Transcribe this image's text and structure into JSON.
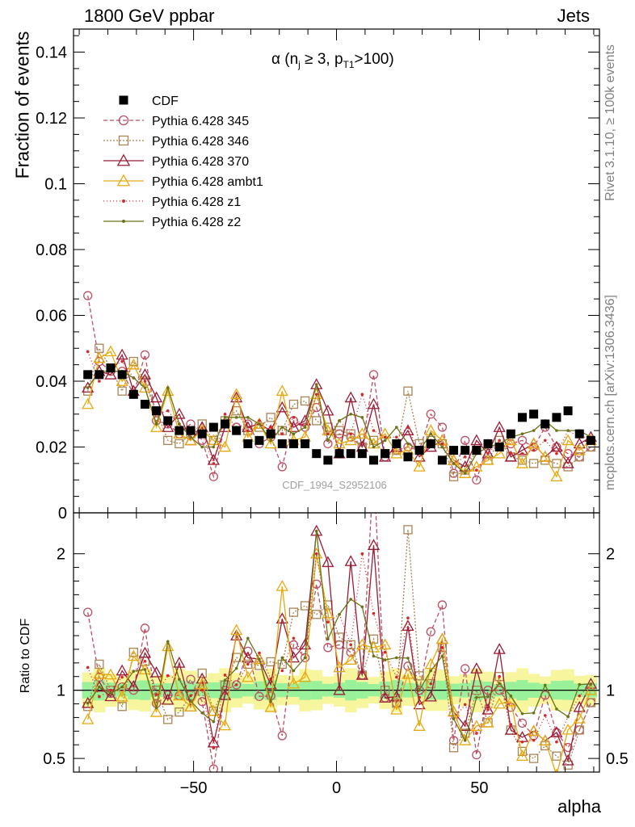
{
  "header": {
    "left": "1800 GeV ppbar",
    "right": "Jets",
    "side_top": "Rivet 3.1.10, ≥ 100k events",
    "side_bottom": "mcplots.cern.ch [arXiv:1306.3436]",
    "watermark": "CDF_1994_S2952106"
  },
  "chart_data": [
    {
      "type": "scatter",
      "panel": "main",
      "title": "α (n_j ≥ 3, p_T1 >100)",
      "ylabel": "Fraction of events",
      "xlabel": "",
      "xlim": [
        -92,
        92
      ],
      "ylim": [
        0,
        0.147
      ],
      "yticks": [
        "0",
        "0.02",
        "0.04",
        "0.06",
        "0.08",
        "0.1",
        "0.12",
        "0.14"
      ],
      "legend_position": "top-left",
      "x": [
        -87,
        -83,
        -79,
        -75,
        -71,
        -67,
        -63,
        -59,
        -55,
        -51,
        -47,
        -43,
        -39,
        -35,
        -31,
        -27,
        -23,
        -19,
        -15,
        -11,
        -7,
        -3,
        1,
        5,
        9,
        13,
        17,
        21,
        25,
        29,
        33,
        37,
        41,
        45,
        49,
        53,
        57,
        61,
        65,
        69,
        73,
        77,
        81,
        85,
        89
      ],
      "series": [
        {
          "name": "CDF",
          "color": "#000000",
          "marker": "square-filled",
          "dash": "none",
          "values": [
            0.042,
            0.042,
            0.044,
            0.042,
            0.036,
            0.033,
            0.031,
            0.028,
            0.025,
            0.025,
            0.024,
            0.026,
            0.027,
            0.025,
            0.021,
            0.022,
            0.024,
            0.021,
            0.021,
            0.021,
            0.018,
            0.016,
            0.018,
            0.018,
            0.018,
            0.016,
            0.018,
            0.021,
            0.017,
            0.019,
            0.021,
            0.016,
            0.019,
            0.019,
            0.019,
            0.021,
            0.02,
            0.024,
            0.029,
            0.03,
            0.027,
            0.029,
            0.031,
            0.024,
            0.022
          ]
        },
        {
          "name": "Pythia 6.428 345",
          "color": "#bc4f66",
          "marker": "circle-open",
          "dash": "5,3",
          "values": [
            0.066,
            0.046,
            0.043,
            0.043,
            0.036,
            0.048,
            0.028,
            0.027,
            0.024,
            0.027,
            0.022,
            0.011,
            0.027,
            0.026,
            0.027,
            0.021,
            0.023,
            0.014,
            0.028,
            0.026,
            0.032,
            0.021,
            0.024,
            0.023,
            0.02,
            0.042,
            0.017,
            0.019,
            0.02,
            0.019,
            0.03,
            0.026,
            0.012,
            0.022,
            0.01,
            0.021,
            0.02,
            0.021,
            0.022,
            0.02,
            0.026,
            0.02,
            0.018,
            0.017,
            0.02
          ]
        },
        {
          "name": "Pythia 6.428 346",
          "color": "#a88555",
          "marker": "square-open",
          "dash": "2,2",
          "values": [
            0.037,
            0.05,
            0.044,
            0.037,
            0.046,
            0.04,
            0.031,
            0.022,
            0.021,
            0.024,
            0.027,
            0.022,
            0.028,
            0.031,
            0.025,
            0.026,
            0.029,
            0.025,
            0.033,
            0.034,
            0.028,
            0.026,
            0.025,
            0.024,
            0.02,
            0.022,
            0.018,
            0.019,
            0.037,
            0.021,
            0.022,
            0.021,
            0.011,
            0.013,
            0.019,
            0.016,
            0.022,
            0.017,
            0.016,
            0.015,
            0.016,
            0.015,
            0.014,
            0.017,
            0.02
          ]
        },
        {
          "name": "Pythia 6.428 370",
          "color": "#9b1c36",
          "marker": "triangle-open",
          "dash": "none",
          "values": [
            0.038,
            0.043,
            0.042,
            0.048,
            0.037,
            0.042,
            0.035,
            0.026,
            0.03,
            0.022,
            0.026,
            0.016,
            0.026,
            0.035,
            0.026,
            0.027,
            0.025,
            0.032,
            0.026,
            0.028,
            0.039,
            0.031,
            0.018,
            0.035,
            0.02,
            0.033,
            0.017,
            0.02,
            0.025,
            0.017,
            0.02,
            0.022,
            0.016,
            0.014,
            0.022,
            0.018,
            0.026,
            0.017,
            0.019,
            0.021,
            0.017,
            0.02,
            0.015,
            0.021,
            0.023
          ]
        },
        {
          "name": "Pythia 6.428 ambt1",
          "color": "#e8a90e",
          "marker": "triangle-open",
          "dash": "none",
          "values": [
            0.033,
            0.047,
            0.049,
            0.04,
            0.045,
            0.038,
            0.026,
            0.037,
            0.024,
            0.022,
            0.025,
            0.022,
            0.02,
            0.036,
            0.023,
            0.027,
            0.021,
            0.037,
            0.022,
            0.023,
            0.036,
            0.025,
            0.021,
            0.022,
            0.024,
            0.021,
            0.024,
            0.018,
            0.019,
            0.014,
            0.025,
            0.022,
            0.016,
            0.012,
            0.014,
            0.016,
            0.018,
            0.022,
            0.015,
            0.021,
            0.017,
            0.011,
            0.022,
            0.019,
            0.022
          ]
        },
        {
          "name": "Pythia 6.428 z1",
          "color": "#d62728",
          "marker": "dot",
          "dash": "1,3",
          "values": [
            0.049,
            0.04,
            0.044,
            0.046,
            0.041,
            0.04,
            0.03,
            0.031,
            0.027,
            0.024,
            0.024,
            0.015,
            0.03,
            0.026,
            0.025,
            0.028,
            0.026,
            0.024,
            0.029,
            0.026,
            0.036,
            0.024,
            0.028,
            0.024,
            0.036,
            0.025,
            0.023,
            0.023,
            0.026,
            0.018,
            0.022,
            0.021,
            0.015,
            0.017,
            0.013,
            0.018,
            0.022,
            0.018,
            0.018,
            0.019,
            0.022,
            0.018,
            0.025,
            0.023,
            0.023
          ]
        },
        {
          "name": "Pythia 6.428 z2",
          "color": "#6b7317",
          "marker": "dot",
          "dash": "none",
          "values": [
            0.038,
            0.043,
            0.043,
            0.043,
            0.041,
            0.038,
            0.027,
            0.038,
            0.027,
            0.023,
            0.02,
            0.02,
            0.029,
            0.029,
            0.029,
            0.027,
            0.022,
            0.026,
            0.024,
            0.026,
            0.039,
            0.022,
            0.028,
            0.03,
            0.029,
            0.02,
            0.022,
            0.026,
            0.021,
            0.019,
            0.024,
            0.02,
            0.015,
            0.012,
            0.018,
            0.02,
            0.021,
            0.023,
            0.024,
            0.025,
            0.028,
            0.025,
            0.025,
            0.025,
            0.023
          ]
        }
      ]
    },
    {
      "type": "scatter",
      "panel": "ratio",
      "ylabel": "Ratio to CDF",
      "xlabel": "alpha",
      "xlim": [
        -92,
        92
      ],
      "ylim": [
        0.4,
        2.3
      ],
      "yticks": [
        "0.5",
        "1",
        "2"
      ],
      "xticks": [
        "−50",
        "0",
        "50"
      ],
      "reference_line": 1,
      "bands": [
        {
          "name": "inner",
          "color": "#99f199",
          "halfwidth": 0.06
        },
        {
          "name": "outer",
          "color": "#f7f59e",
          "halfwidth": 0.13
        }
      ]
    }
  ]
}
